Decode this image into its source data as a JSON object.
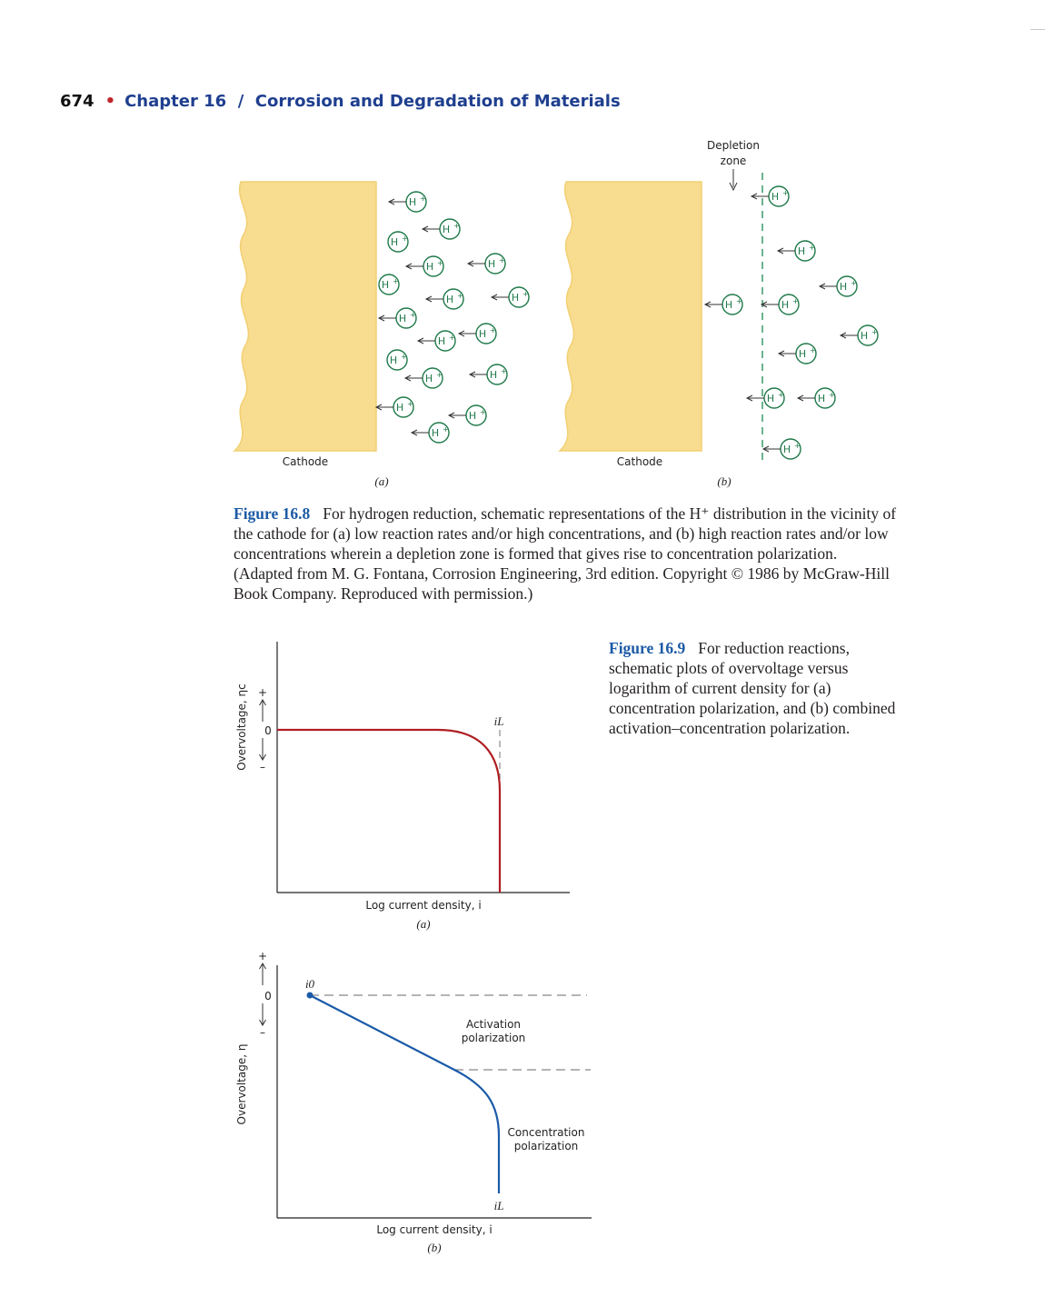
{
  "header": {
    "page_number": "674",
    "chapter": "Chapter 16  /  Corrosion and Degradation of Materials"
  },
  "figure_16_8": {
    "ion_label": "H+",
    "panel_a": {
      "cathode_label": "Cathode",
      "sublabel": "(a)"
    },
    "panel_b": {
      "cathode_label": "Cathode",
      "sublabel": "(b)",
      "depletion_label_1": "Depletion",
      "depletion_label_2": "zone"
    },
    "caption": {
      "figure_label": "Figure 16.8",
      "text": "For hydrogen reduction, schematic representations of the H⁺ distribution in the vicinity of the cathode for (a) low reaction rates and/or high concentrations, and (b) high reaction rates and/or low concentrations wherein a depletion zone is formed that gives rise to concentration polarization. (Adapted from M. G. Fontana, Corrosion Engineering, 3rd edition. Copyright © 1986 by McGraw-Hill Book Company. Reproduced with permission.)"
    }
  },
  "figure_16_9": {
    "caption": {
      "figure_label": "Figure 16.9",
      "text": "For reduction reactions, schematic plots of overvoltage versus logarithm of current density for (a) concentration polarization, and (b) combined activation–concentration polarization."
    },
    "plot_a": {
      "ylabel": "Overvoltage, ηc",
      "xlabel": "Log current density, i",
      "zero_label": "0",
      "plus_label": "+",
      "minus_label": "–",
      "iL_label": "iL",
      "sublabel": "(a)"
    },
    "plot_b": {
      "ylabel": "Overvoltage, η",
      "xlabel": "Log current density, i",
      "zero_label": "0",
      "plus_label": "+",
      "minus_label": "–",
      "i0_label": "i0",
      "iL_label": "iL",
      "activation_label_1": "Activation",
      "activation_label_2": "polarization",
      "concentration_label_1": "Concentration",
      "concentration_label_2": "polarization",
      "sublabel": "(b)"
    }
  },
  "colors": {
    "cathode_fill": "#f8dc90",
    "ion_green": "#1f7a4a",
    "curve_red": "#b01e23",
    "curve_blue": "#1a5aa8",
    "figure_label_blue": "#1d5aa6"
  }
}
